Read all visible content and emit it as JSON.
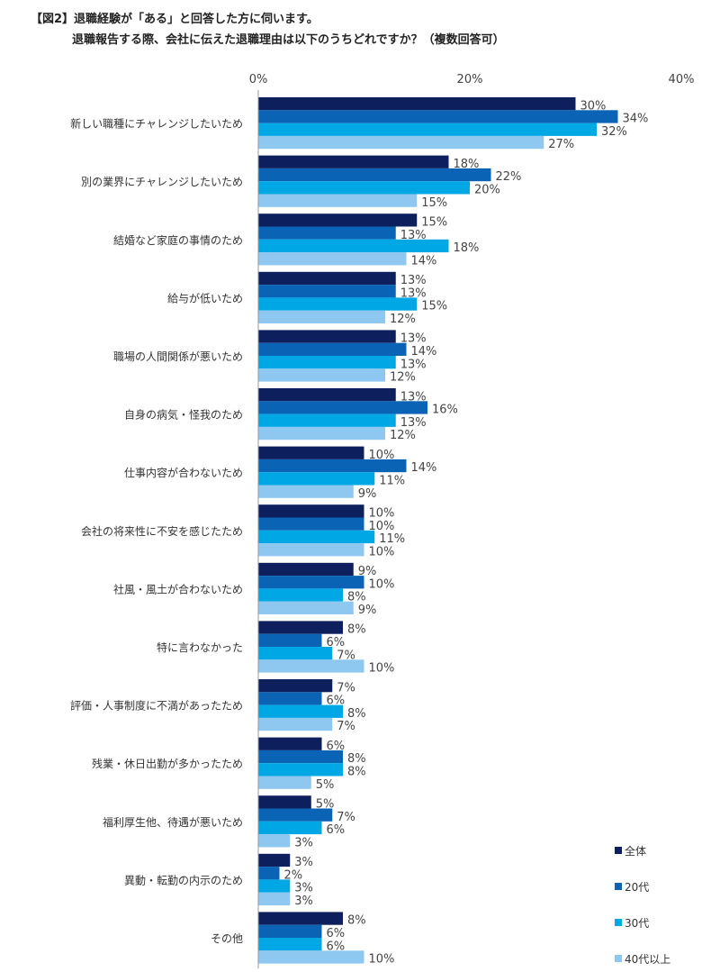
{
  "chart_data": {
    "type": "bar",
    "orientation": "horizontal",
    "title_line1": "【図2】退職経験が「ある」と回答した方に伺います。",
    "title_line2": "退職報告する際、会社に伝えた退職理由は以下のうちどれですか？（複数回答可）",
    "xlim": [
      0,
      40
    ],
    "xticks": [
      "0%",
      "20%",
      "40%"
    ],
    "xtick_values": [
      0,
      20,
      40
    ],
    "unit": "%",
    "grid": false,
    "legend_position": "bottom-right",
    "categories": [
      "新しい職種にチャレンジしたいため",
      "別の業界にチャレンジしたいため",
      "結婚など家庭の事情のため",
      "給与が低いため",
      "職場の人間関係が悪いため",
      "自身の病気・怪我のため",
      "仕事内容が合わないため",
      "会社の将来性に不安を感じたため",
      "社風・風土が合わないため",
      "特に言わなかった",
      "評価・人事制度に不満があったため",
      "残業・休日出勤が多かったため",
      "福利厚生他、待遇が悪いため",
      "異動・転勤の内示のため",
      "その他"
    ],
    "series": [
      {
        "name": "全体",
        "color": "#0d1f5c",
        "values": [
          30,
          18,
          15,
          13,
          13,
          13,
          10,
          10,
          9,
          8,
          7,
          6,
          5,
          3,
          8
        ]
      },
      {
        "name": "20代",
        "color": "#0a63b5",
        "values": [
          34,
          22,
          13,
          13,
          14,
          16,
          14,
          10,
          10,
          6,
          6,
          8,
          7,
          2,
          6
        ]
      },
      {
        "name": "30代",
        "color": "#00a7e5",
        "values": [
          32,
          20,
          18,
          15,
          13,
          13,
          11,
          11,
          8,
          7,
          8,
          8,
          6,
          3,
          6
        ]
      },
      {
        "name": "40代以上",
        "color": "#8ec8f0",
        "values": [
          27,
          15,
          14,
          12,
          12,
          12,
          9,
          10,
          9,
          10,
          7,
          5,
          3,
          3,
          10
        ]
      }
    ]
  }
}
